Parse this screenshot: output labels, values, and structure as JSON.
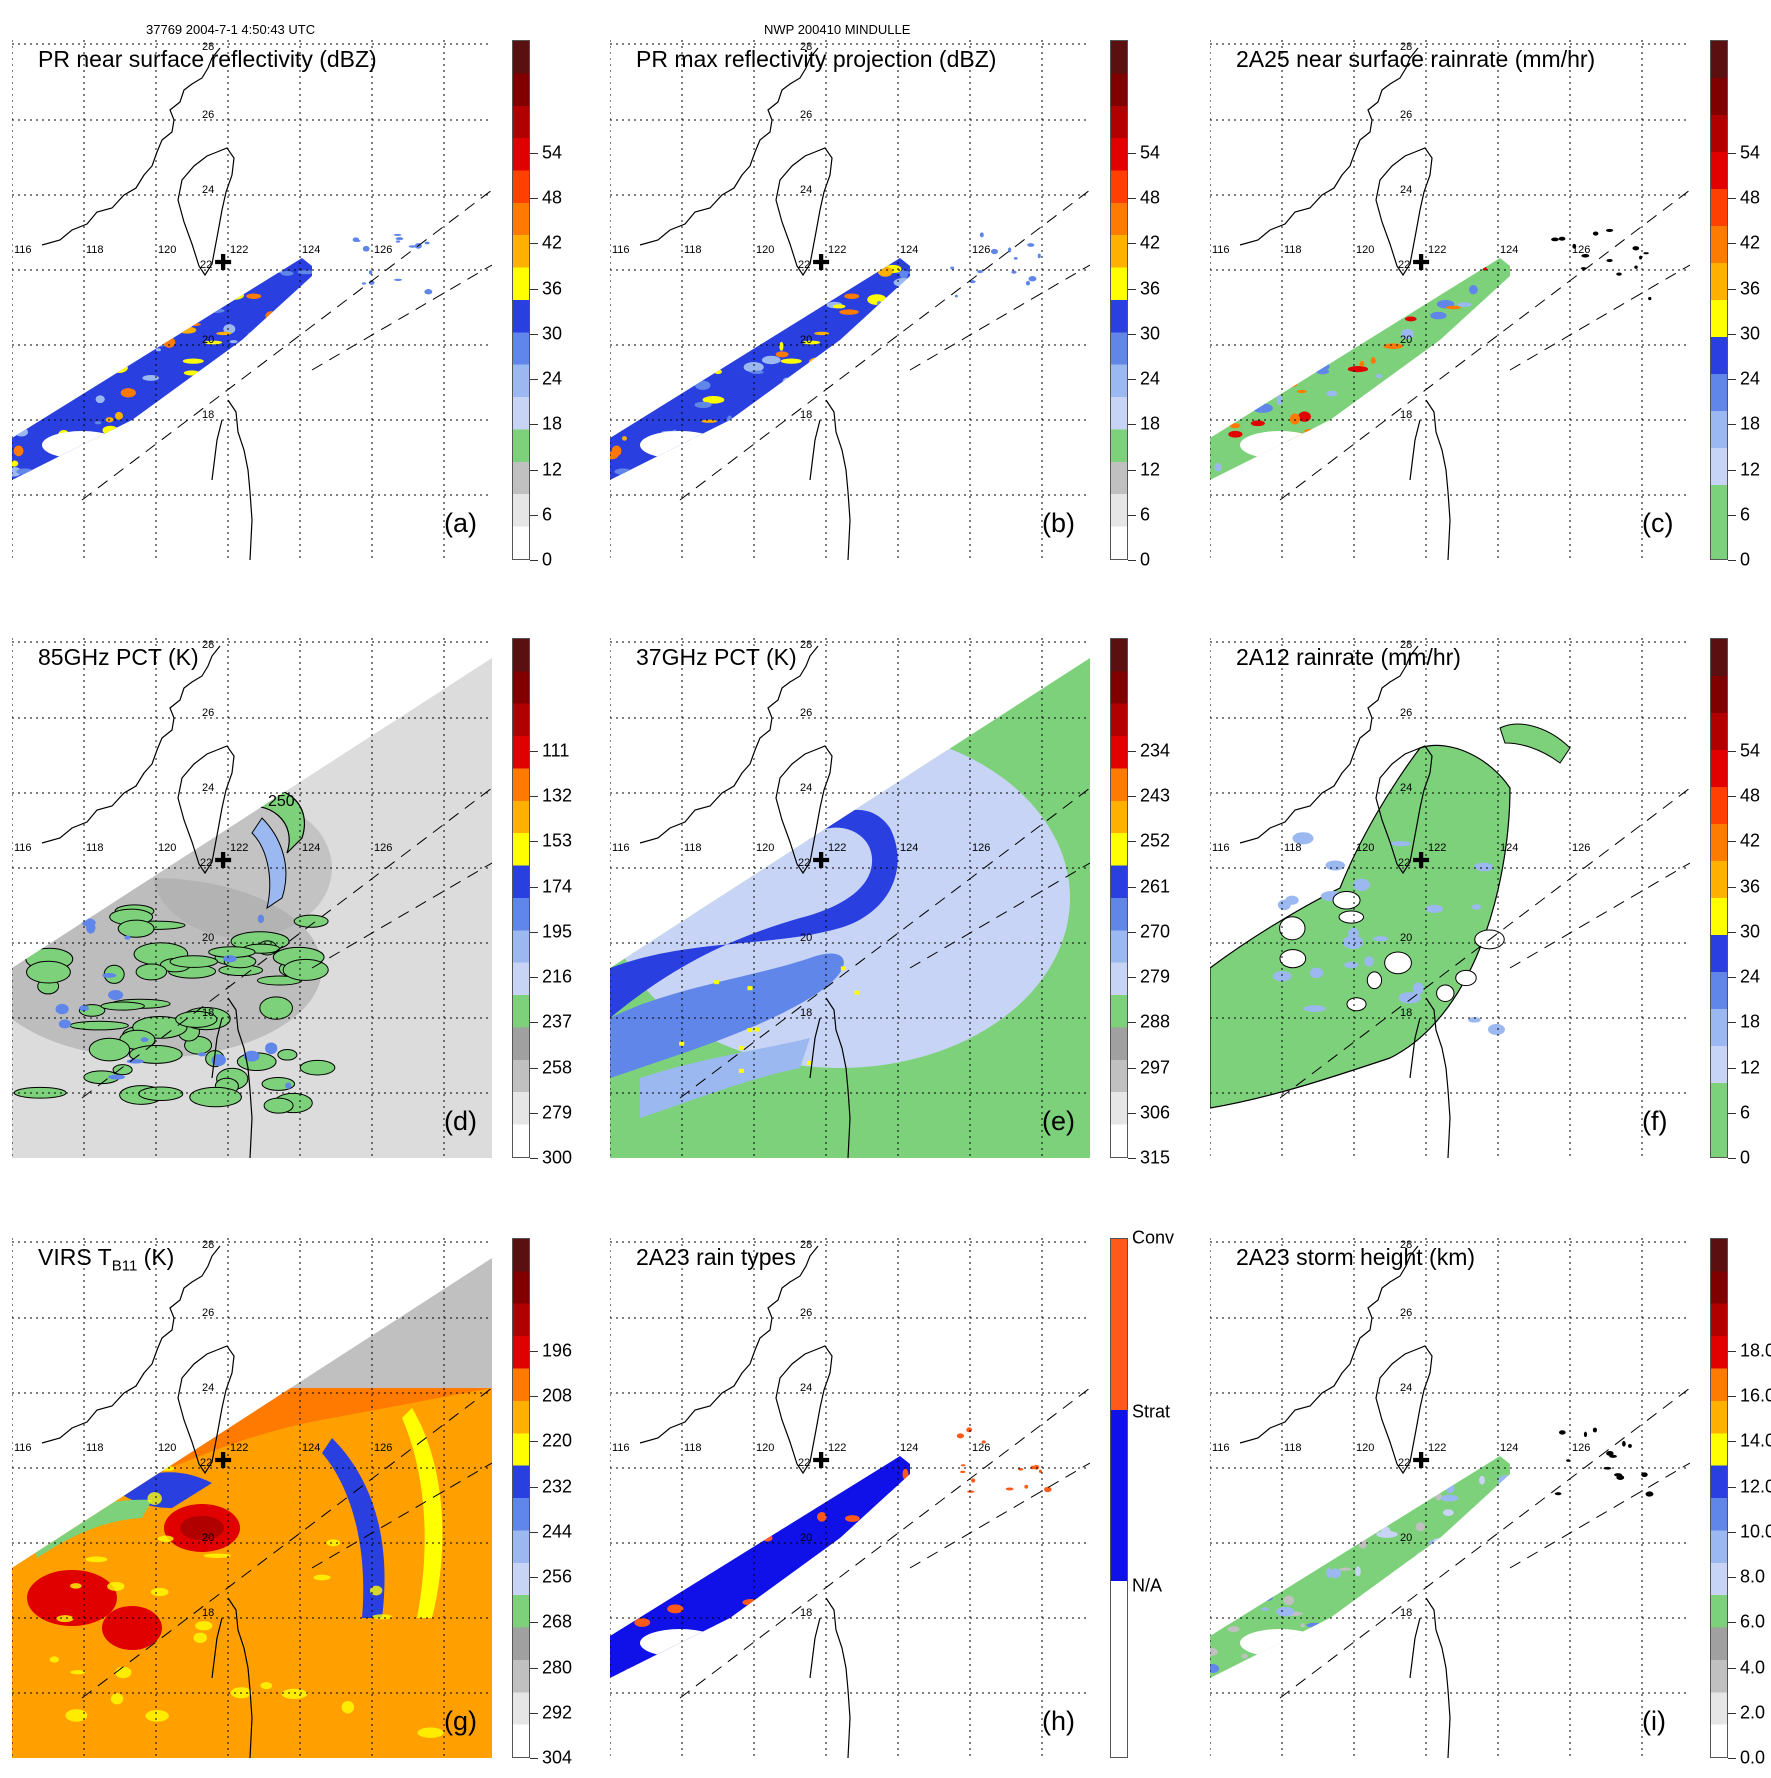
{
  "header": {
    "orbit_time": "37769 2004-7-1 4:50:43 UTC",
    "storm": "NWP 200410 MINDULLE"
  },
  "map_labels": {
    "lon": [
      "116",
      "118",
      "120",
      "122",
      "124",
      "126"
    ],
    "lat": [
      "28",
      "26",
      "24",
      "22",
      "20",
      "18"
    ]
  },
  "panels": [
    {
      "key": "a",
      "title": "PR near surface reflectivity (dBZ)",
      "label": "(a)",
      "style": "swath",
      "scale": "dbz",
      "contour_label": ""
    },
    {
      "key": "b",
      "title": "PR max reflectivity projection (dBZ)",
      "label": "(b)",
      "style": "swath",
      "scale": "dbz",
      "contour_label": ""
    },
    {
      "key": "c",
      "title": "2A25 near surface rainrate (mm/hr)",
      "label": "(c)",
      "style": "swath_green",
      "scale": "rain",
      "contour_label": ""
    },
    {
      "key": "d",
      "title": "85GHz PCT (K)",
      "label": "(d)",
      "style": "pct85",
      "scale": "pct85",
      "contour_label": "250"
    },
    {
      "key": "e",
      "title": "37GHz PCT (K)",
      "label": "(e)",
      "style": "pct37",
      "scale": "pct37",
      "contour_label": ""
    },
    {
      "key": "f",
      "title": "2A12 rainrate (mm/hr)",
      "label": "(f)",
      "style": "rain12",
      "scale": "rain",
      "contour_label": ""
    },
    {
      "key": "g",
      "title": "VIRS T",
      "title_sub": "B11",
      "title_suffix": " (K)",
      "label": "(g)",
      "style": "virs",
      "scale": "virs",
      "contour_label": ""
    },
    {
      "key": "h",
      "title": "2A23 rain types",
      "label": "(h)",
      "style": "raintype",
      "scale": "raintype",
      "contour_label": ""
    },
    {
      "key": "i",
      "title": "2A23 storm height (km)",
      "label": "(i)",
      "style": "height",
      "scale": "height",
      "contour_label": ""
    }
  ],
  "scales": {
    "dbz": {
      "labels": [
        "0",
        "6",
        "12",
        "18",
        "24",
        "30",
        "36",
        "42",
        "48",
        "54"
      ]
    },
    "rain": {
      "labels": [
        "0",
        "6",
        "12",
        "18",
        "24",
        "30",
        "36",
        "42",
        "48",
        "54"
      ]
    },
    "pct85": {
      "labels": [
        "300",
        "279",
        "258",
        "237",
        "216",
        "195",
        "174",
        "153",
        "132",
        "111"
      ]
    },
    "pct37": {
      "labels": [
        "315",
        "306",
        "297",
        "288",
        "279",
        "270",
        "261",
        "252",
        "243",
        "234"
      ]
    },
    "virs": {
      "labels": [
        "304",
        "292",
        "280",
        "268",
        "256",
        "244",
        "232",
        "220",
        "208",
        "196"
      ]
    },
    "height": {
      "labels": [
        "0.0",
        "2.0",
        "4.0",
        "6.0",
        "8.0",
        "10.0",
        "12.0",
        "14.0",
        "16.0",
        "18.0"
      ]
    },
    "raintype": {
      "labels": [
        "N/A",
        "Strat",
        "Conv"
      ]
    }
  },
  "colors": {
    "white": "#ffffff",
    "gray_light": "#e6e6e6",
    "gray_mid": "#c0c0c0",
    "gray_dark": "#a0a0a0",
    "green": "#7ed17b",
    "green_dark": "#55b955",
    "blue_pale": "#c8d4f5",
    "blue_light": "#9bb8f0",
    "blue_mid": "#5f86e8",
    "blue": "#2a3fe0",
    "blue_dark": "#1010c8",
    "yellow": "#ffff00",
    "orange_light": "#ffb000",
    "orange": "#ff7a00",
    "red_orange": "#ff4000",
    "red": "#e00000",
    "red_dark": "#b00000",
    "maroon": "#800000",
    "brown": "#5a1010",
    "conv": "#ff5a1a",
    "strat": "#1010e8"
  }
}
